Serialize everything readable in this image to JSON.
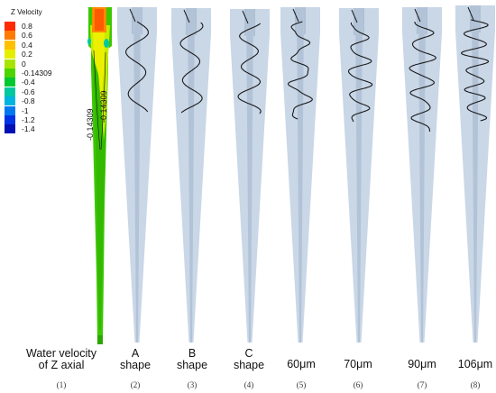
{
  "legend": {
    "title": "Z Velocity",
    "items": [
      {
        "label": "0.8",
        "color": "#ff2a00"
      },
      {
        "label": "0.6",
        "color": "#ff7a00"
      },
      {
        "label": "0.4",
        "color": "#ffc000"
      },
      {
        "label": "0.2",
        "color": "#e6ee00"
      },
      {
        "label": "0",
        "color": "#a8e400"
      },
      {
        "label": "-0.14309",
        "color": "#4cd400"
      },
      {
        "label": "-0.4",
        "color": "#00c830"
      },
      {
        "label": "-0.6",
        "color": "#00c8a0"
      },
      {
        "label": "-0.8",
        "color": "#00b4e0"
      },
      {
        "label": "-1",
        "color": "#0078f0"
      },
      {
        "label": "-1.2",
        "color": "#0032e6"
      },
      {
        "label": "-1.4",
        "color": "#0010b4"
      }
    ]
  },
  "contour_labels": [
    "-0.14309",
    "-0.14309"
  ],
  "panels": [
    {
      "caption_line1": "Water velocity",
      "caption_line2": "of Z axial",
      "index": "(1)"
    },
    {
      "caption_line1": "A",
      "caption_line2": "shape",
      "index": "(2)"
    },
    {
      "caption_line1": "B",
      "caption_line2": "shape",
      "index": "(3)"
    },
    {
      "caption_line1": "C",
      "caption_line2": "shape",
      "index": "(4)"
    },
    {
      "caption_line1": "60μm",
      "caption_line2": "",
      "index": "(5)"
    },
    {
      "caption_line1": "70μm",
      "caption_line2": "",
      "index": "(6)"
    },
    {
      "caption_line1": "90μm",
      "caption_line2": "",
      "index": "(7)"
    },
    {
      "caption_line1": "106μm",
      "caption_line2": "",
      "index": "(8)"
    }
  ],
  "colors": {
    "cyclone_fill": "#c9d7e7",
    "cyclone_core": "#aabbd0",
    "trajectory": "#1a1a1a",
    "contour_green": "#3cc700"
  }
}
